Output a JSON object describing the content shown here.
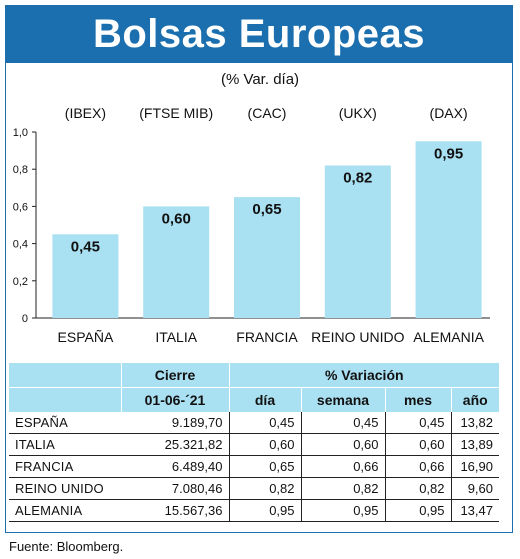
{
  "title": "Bolsas Europeas",
  "subtitle": "(% Var. día)",
  "colors": {
    "brand": "#1b6fae",
    "bar": "#a9e0f2",
    "header_bg": "#a9e0f2"
  },
  "chart_data": {
    "type": "bar",
    "index_labels": [
      "(IBEX)",
      "(FTSE MIB)",
      "(CAC)",
      "(UKX)",
      "(DAX)"
    ],
    "categories": [
      "ESPAÑA",
      "ITALIA",
      "FRANCIA",
      "REINO UNIDO",
      "ALEMANIA"
    ],
    "values": [
      0.45,
      0.6,
      0.65,
      0.82,
      0.95
    ],
    "value_labels": [
      "0,45",
      "0,60",
      "0,65",
      "0,82",
      "0,95"
    ],
    "ylim": [
      0,
      1.0
    ],
    "yticks": [
      0,
      0.2,
      0.4,
      0.6,
      0.8,
      1.0
    ],
    "ytick_labels": [
      "0",
      "0,2",
      "0,4",
      "0,6",
      "0,8",
      "1,0"
    ]
  },
  "table": {
    "group_headers": {
      "cierre": "Cierre",
      "variacion": "% Variación"
    },
    "columns": {
      "date": "01-06-´21",
      "dia": "día",
      "semana": "semana",
      "mes": "mes",
      "ano": "año"
    },
    "rows": [
      {
        "name": "ESPAÑA",
        "cierre": "9.189,70",
        "dia": "0,45",
        "semana": "0,45",
        "mes": "0,45",
        "ano": "13,82"
      },
      {
        "name": "ITALIA",
        "cierre": "25.321,82",
        "dia": "0,60",
        "semana": "0,60",
        "mes": "0,60",
        "ano": "13,89"
      },
      {
        "name": "FRANCIA",
        "cierre": "6.489,40",
        "dia": "0,65",
        "semana": "0,66",
        "mes": "0,66",
        "ano": "16,90"
      },
      {
        "name": "REINO UNIDO",
        "cierre": "7.080,46",
        "dia": "0,82",
        "semana": "0,82",
        "mes": "0,82",
        "ano": "9,60"
      },
      {
        "name": "ALEMANIA",
        "cierre": "15.567,36",
        "dia": "0,95",
        "semana": "0,95",
        "mes": "0,95",
        "ano": "13,47"
      }
    ]
  },
  "source": "Fuente: Bloomberg."
}
